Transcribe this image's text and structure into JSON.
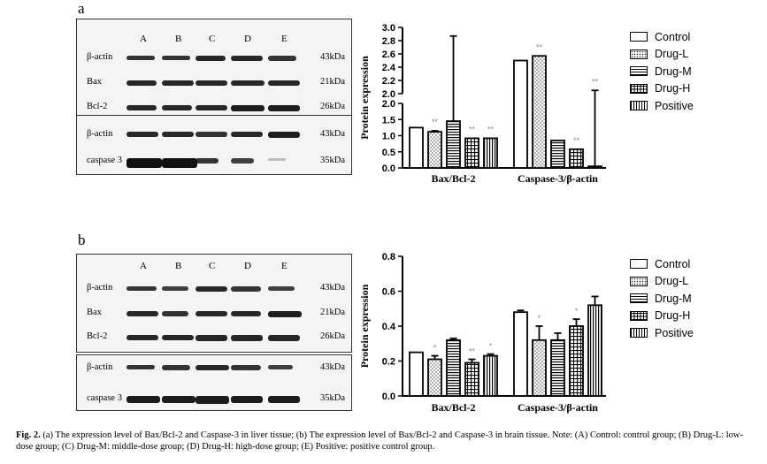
{
  "panels": [
    {
      "label": "a",
      "blot": {
        "lanes": [
          "A",
          "B",
          "C",
          "D",
          "E"
        ],
        "rows_top": [
          {
            "name": "β-actin",
            "kda": "43kDa"
          },
          {
            "name": "Bax",
            "kda": "21kDa"
          },
          {
            "name": "Bcl-2",
            "kda": "26kDa"
          }
        ],
        "rows_bottom": [
          {
            "name": "β-actin",
            "kda": "43kDa"
          },
          {
            "name": "caspase 3",
            "kda": "35kDa"
          }
        ]
      }
    },
    {
      "label": "b",
      "blot": {
        "lanes": [
          "A",
          "B",
          "C",
          "D",
          "E"
        ],
        "rows_top": [
          {
            "name": "β-actin",
            "kda": "43kDa"
          },
          {
            "name": "Bax",
            "kda": "21kDa"
          },
          {
            "name": "Bcl-2",
            "kda": "26kDa"
          }
        ],
        "rows_bottom": [
          {
            "name": "β-actin",
            "kda": "43kDa"
          },
          {
            "name": "caspase 3",
            "kda": "35kDa"
          }
        ]
      }
    }
  ],
  "chart_data": [
    {
      "type": "bar",
      "ylabel": "Protein expression",
      "categories": [
        "Bax/Bcl-2",
        "Caspase-3/β-actin"
      ],
      "broken_axis": true,
      "ylim_lower": [
        0,
        2.0
      ],
      "ylim_upper": [
        2.0,
        3.0
      ],
      "yticks_lower": [
        "0.0",
        "0.5",
        "1.0",
        "1.5",
        "2.0"
      ],
      "yticks_upper": [
        "2.0",
        "2.2",
        "2.4",
        "2.6",
        "2.8",
        "3.0"
      ],
      "series": [
        {
          "name": "Control",
          "values": [
            1.25,
            2.5
          ],
          "errors": [
            0.0,
            0.0
          ],
          "sig": [
            "",
            ""
          ]
        },
        {
          "name": "Drug-L",
          "values": [
            1.12,
            2.57
          ],
          "errors": [
            0.03,
            0.0
          ],
          "sig": [
            "**",
            "**"
          ]
        },
        {
          "name": "Drug-M",
          "values": [
            1.45,
            0.85
          ],
          "errors": [
            1.42,
            0.0
          ],
          "sig": [
            "",
            ""
          ]
        },
        {
          "name": "Drug-H",
          "values": [
            0.92,
            0.58
          ],
          "errors": [
            0.0,
            0.0
          ],
          "sig": [
            "**",
            "**"
          ]
        },
        {
          "name": "Positive",
          "values": [
            0.92,
            0.05
          ],
          "errors": [
            0.0,
            2.0
          ],
          "sig": [
            "**",
            "**"
          ]
        }
      ]
    },
    {
      "type": "bar",
      "ylabel": "Protein expression",
      "categories": [
        "Bax/Bcl-2",
        "Caspase-3/β-actin"
      ],
      "ylim": [
        0,
        0.8
      ],
      "yticks": [
        "0.0",
        "0.2",
        "0.4",
        "0.6",
        "0.8"
      ],
      "series": [
        {
          "name": "Control",
          "values": [
            0.25,
            0.48
          ],
          "errors": [
            0.0,
            0.01
          ],
          "sig": [
            "",
            ""
          ]
        },
        {
          "name": "Drug-L",
          "values": [
            0.21,
            0.32
          ],
          "errors": [
            0.02,
            0.08
          ],
          "sig": [
            "*",
            "*"
          ]
        },
        {
          "name": "Drug-M",
          "values": [
            0.32,
            0.32
          ],
          "errors": [
            0.01,
            0.04
          ],
          "sig": [
            "",
            ""
          ]
        },
        {
          "name": "Drug-H",
          "values": [
            0.19,
            0.4
          ],
          "errors": [
            0.02,
            0.04
          ],
          "sig": [
            "**",
            "*"
          ]
        },
        {
          "name": "Positive",
          "values": [
            0.23,
            0.52
          ],
          "errors": [
            0.01,
            0.05
          ],
          "sig": [
            "*",
            ""
          ]
        }
      ]
    }
  ],
  "caption": {
    "bold": "Fig. 2.",
    "text": " (a) The expression level of Bax/Bcl-2 and Caspase-3 in liver tissue; (b) The expression level of Bax/Bcl-2 and Caspase-3 in brain tissue. Note: (A) Control: control group; (B) Drug-L: low-dose group; (C) Drug-M: middle-dose group; (D) Drug-H: high-dose group; (E) Positive: positive control group."
  }
}
